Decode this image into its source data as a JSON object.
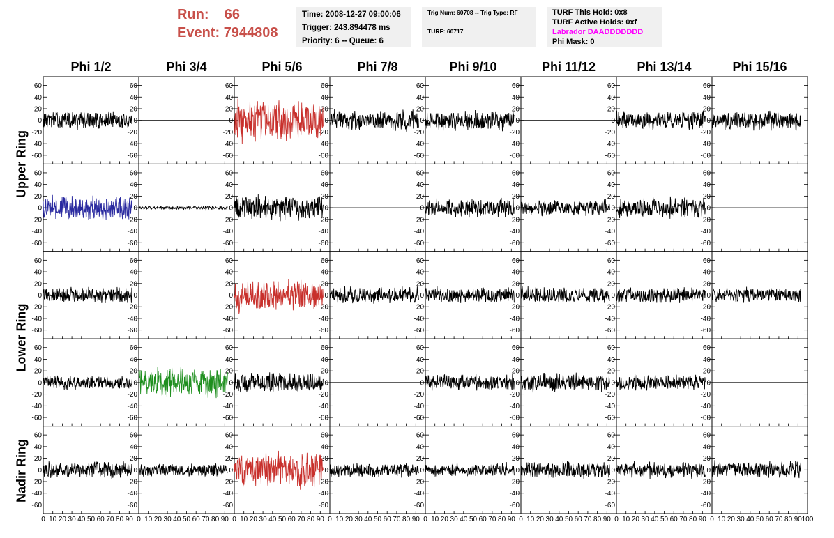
{
  "header": {
    "run_label": "Run:",
    "run_value": "66",
    "event_label": "Event:",
    "event_value": "7944808",
    "time": "Time: 2008-12-27 09:00:06",
    "trigger": "Trigger: 243.894478 ms",
    "priority_queue": "Priority: 6 -- Queue: 6",
    "trig_num_type": "Trig Num: 60708 -- Trig Type: RF",
    "turf": "TURF: 60717",
    "turf_this_hold": "TURF This Hold: 0x8",
    "turf_active_holds": "TURF Active Holds: 0xf",
    "labrador": "Labrador DAADDDDDDD",
    "phi_mask": "Phi Mask: 0"
  },
  "columns": [
    "Phi 1/2",
    "Phi 3/4",
    "Phi 5/6",
    "Phi 7/8",
    "Phi 9/10",
    "Phi 11/12",
    "Phi 13/14",
    "Phi 15/16"
  ],
  "ring_labels": {
    "upper": "Upper Ring",
    "lower": "Lower Ring",
    "nadir": "Nadir Ring"
  },
  "colors": {
    "default_trace": "#000000",
    "red_trace": "#c8302c",
    "blue_trace": "#2a2aa0",
    "green_trace": "#1e8f1e",
    "run_event_text": "#c8504a",
    "labrador_text": "#ff00ff",
    "info_box_bg": "#f0f0f0"
  },
  "chart_data": {
    "type": "line",
    "xlim": [
      0,
      100
    ],
    "ylim": [
      -75,
      75
    ],
    "x_ticks": [
      "0",
      "10",
      "20",
      "30",
      "40",
      "50",
      "60",
      "70",
      "80",
      "90",
      "100"
    ],
    "y_ticks": [
      "60",
      "40",
      "20",
      "0",
      "-20",
      "-40",
      "-60"
    ],
    "grid": false,
    "rows": 5,
    "cols": 8,
    "panels": [
      {
        "row": 0,
        "col": 0,
        "color": "black",
        "amplitude": 16
      },
      {
        "row": 0,
        "col": 1,
        "color": "black",
        "amplitude": 0
      },
      {
        "row": 0,
        "col": 2,
        "color": "red",
        "amplitude": 38
      },
      {
        "row": 0,
        "col": 3,
        "color": "black",
        "amplitude": 18
      },
      {
        "row": 0,
        "col": 4,
        "color": "black",
        "amplitude": 18
      },
      {
        "row": 0,
        "col": 5,
        "color": "black",
        "amplitude": 0
      },
      {
        "row": 0,
        "col": 6,
        "color": "black",
        "amplitude": 17
      },
      {
        "row": 0,
        "col": 7,
        "color": "black",
        "amplitude": 17
      },
      {
        "row": 1,
        "col": 0,
        "color": "blue",
        "amplitude": 22
      },
      {
        "row": 1,
        "col": 1,
        "color": "black",
        "amplitude": 3
      },
      {
        "row": 1,
        "col": 2,
        "color": "black",
        "amplitude": 24
      },
      {
        "row": 1,
        "col": 3,
        "color": "black",
        "amplitude": 0
      },
      {
        "row": 1,
        "col": 4,
        "color": "black",
        "amplitude": 17
      },
      {
        "row": 1,
        "col": 5,
        "color": "black",
        "amplitude": 14
      },
      {
        "row": 1,
        "col": 6,
        "color": "black",
        "amplitude": 18
      },
      {
        "row": 1,
        "col": 7,
        "color": "black",
        "amplitude": 0
      },
      {
        "row": 2,
        "col": 0,
        "color": "black",
        "amplitude": 14
      },
      {
        "row": 2,
        "col": 1,
        "color": "black",
        "amplitude": 0
      },
      {
        "row": 2,
        "col": 2,
        "color": "red",
        "amplitude": 30
      },
      {
        "row": 2,
        "col": 3,
        "color": "black",
        "amplitude": 15
      },
      {
        "row": 2,
        "col": 4,
        "color": "black",
        "amplitude": 14
      },
      {
        "row": 2,
        "col": 5,
        "color": "black",
        "amplitude": 14
      },
      {
        "row": 2,
        "col": 6,
        "color": "black",
        "amplitude": 14
      },
      {
        "row": 2,
        "col": 7,
        "color": "black",
        "amplitude": 13
      },
      {
        "row": 3,
        "col": 0,
        "color": "black",
        "amplitude": 12
      },
      {
        "row": 3,
        "col": 1,
        "color": "green",
        "amplitude": 26
      },
      {
        "row": 3,
        "col": 2,
        "color": "black",
        "amplitude": 18
      },
      {
        "row": 3,
        "col": 3,
        "color": "black",
        "amplitude": 0
      },
      {
        "row": 3,
        "col": 4,
        "color": "black",
        "amplitude": 14
      },
      {
        "row": 3,
        "col": 5,
        "color": "black",
        "amplitude": 17
      },
      {
        "row": 3,
        "col": 6,
        "color": "black",
        "amplitude": 14
      },
      {
        "row": 3,
        "col": 7,
        "color": "black",
        "amplitude": 0
      },
      {
        "row": 4,
        "col": 0,
        "color": "black",
        "amplitude": 14
      },
      {
        "row": 4,
        "col": 1,
        "color": "black",
        "amplitude": 12
      },
      {
        "row": 4,
        "col": 2,
        "color": "red",
        "amplitude": 32
      },
      {
        "row": 4,
        "col": 3,
        "color": "black",
        "amplitude": 13
      },
      {
        "row": 4,
        "col": 4,
        "color": "black",
        "amplitude": 12
      },
      {
        "row": 4,
        "col": 5,
        "color": "black",
        "amplitude": 15
      },
      {
        "row": 4,
        "col": 6,
        "color": "black",
        "amplitude": 14
      },
      {
        "row": 4,
        "col": 7,
        "color": "black",
        "amplitude": 15
      }
    ]
  }
}
